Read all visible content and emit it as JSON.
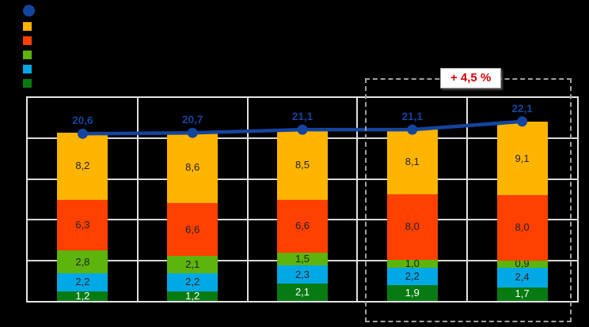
{
  "canvas": {
    "background": "#000000"
  },
  "legend": {
    "items": [
      {
        "name": "line-series-marker",
        "shape": "circle",
        "color": "#14449E"
      },
      {
        "name": "orange-series-marker",
        "shape": "square",
        "color": "#FFB400"
      },
      {
        "name": "red-series-marker",
        "shape": "square",
        "color": "#FF4000"
      },
      {
        "name": "green-series-marker",
        "shape": "square",
        "color": "#5CB40C"
      },
      {
        "name": "cyan-series-marker",
        "shape": "square",
        "color": "#00A9E6"
      },
      {
        "name": "dark-green-series-marker",
        "shape": "square",
        "color": "#077B12"
      }
    ]
  },
  "chart_data": {
    "type": "bar",
    "subtype": "stacked-bars-with-line-overlay",
    "n_categories": 5,
    "ylim": [
      0,
      25
    ],
    "ygrid_step": 5,
    "grid": true,
    "series": [
      {
        "name": "dark-green-bottom",
        "color": "#077B12",
        "label_color": "#FFFFFF",
        "values": [
          1.2,
          1.2,
          2.1,
          1.9,
          1.7
        ],
        "labels": [
          "1,2",
          "1,2",
          "2,1",
          "1,9",
          "1,7"
        ]
      },
      {
        "name": "cyan",
        "color": "#00A9E6",
        "label_color": "#222222",
        "values": [
          2.2,
          2.2,
          2.3,
          2.2,
          2.4
        ],
        "labels": [
          "2,2",
          "2,2",
          "2,3",
          "2,2",
          "2,4"
        ]
      },
      {
        "name": "green",
        "color": "#5CB40C",
        "label_color": "#222222",
        "values": [
          2.8,
          2.1,
          1.5,
          1.0,
          0.9
        ],
        "labels": [
          "2,8",
          "2,1",
          "1,5",
          "1,0",
          "0,9"
        ]
      },
      {
        "name": "red-orange",
        "color": "#FF4000",
        "label_color": "#222222",
        "values": [
          6.3,
          6.6,
          6.6,
          8.0,
          8.0
        ],
        "labels": [
          "6,3",
          "6,6",
          "6,6",
          "8,0",
          "8,0"
        ]
      },
      {
        "name": "orange-top",
        "color": "#FFB400",
        "label_color": "#222222",
        "values": [
          8.2,
          8.6,
          8.5,
          8.1,
          9.1
        ],
        "labels": [
          "8,2",
          "8,6",
          "8,5",
          "8,1",
          "9,1"
        ]
      }
    ],
    "line": {
      "name": "total-line",
      "color": "#14449E",
      "label_color": "#14449E",
      "values": [
        20.6,
        20.7,
        21.1,
        21.1,
        22.1
      ],
      "labels": [
        "20,6",
        "20,7",
        "21,1",
        "21,1",
        "22,1"
      ]
    },
    "highlight": {
      "from_category": 4,
      "to_category": 5,
      "annotation": "+ 4,5 %",
      "annotation_color": "#D40000",
      "box_style": "dashed-gray"
    }
  }
}
